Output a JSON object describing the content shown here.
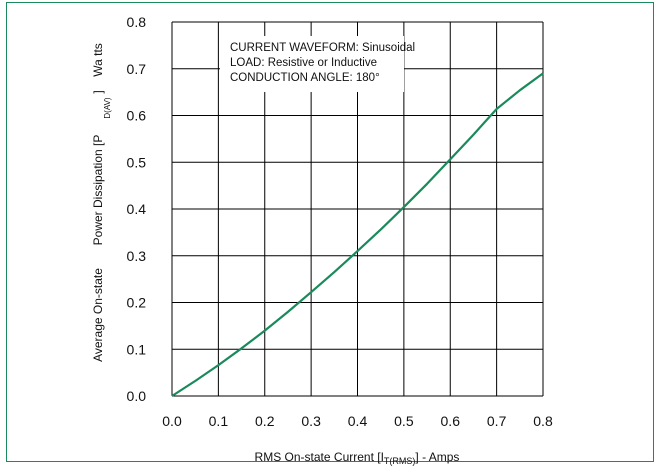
{
  "chart_data": {
    "type": "line",
    "xlim": [
      0.0,
      0.8
    ],
    "ylim": [
      0.0,
      0.8
    ],
    "x_ticks": [
      "0.0",
      "0.1",
      "0.2",
      "0.3",
      "0.4",
      "0.5",
      "0.6",
      "0.7",
      "0.8"
    ],
    "y_ticks": [
      "0.0",
      "0.1",
      "0.2",
      "0.3",
      "0.4",
      "0.5",
      "0.6",
      "0.7",
      "0.8"
    ],
    "grid": true,
    "xlabel": {
      "prefix": "RMS On-state Current [I",
      "subscript": "T(RMS)",
      "suffix": "] - Amps"
    },
    "ylabel": {
      "part1": "Average On-state",
      "part2": "Power Dissipation [P",
      "subscript": "D(AV)",
      "part3": "]",
      "part4": "Wa tts"
    },
    "annotations": [
      "CURRENT WAVEFORM: Sinusoidal",
      "LOAD: Resistive or Inductive",
      "CONDUCTION ANGLE: 180°"
    ],
    "series": [
      {
        "color": "#1a8a5c",
        "x": [
          0.0,
          0.05,
          0.1,
          0.15,
          0.2,
          0.25,
          0.3,
          0.35,
          0.4,
          0.45,
          0.5,
          0.55,
          0.6,
          0.65,
          0.7,
          0.75,
          0.8
        ],
        "y": [
          0.0,
          0.032,
          0.066,
          0.102,
          0.14,
          0.18,
          0.222,
          0.265,
          0.31,
          0.356,
          0.404,
          0.454,
          0.506,
          0.559,
          0.614,
          0.654,
          0.69
        ]
      }
    ]
  }
}
